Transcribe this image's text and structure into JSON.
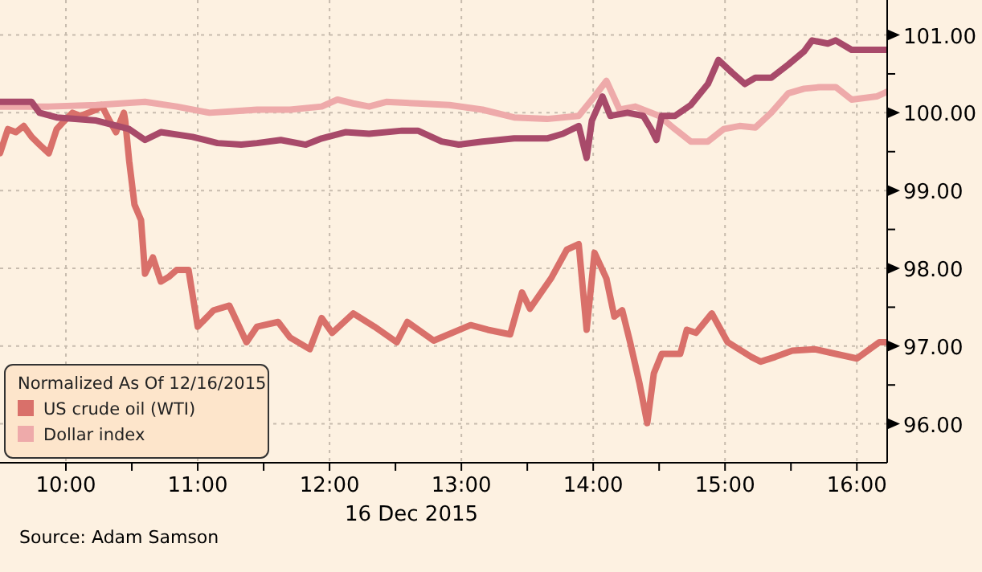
{
  "chart_data": {
    "type": "line",
    "xlabel": "16 Dec 2015",
    "legend_title": "Normalized As Of 12/16/2015",
    "legend": "bottom left",
    "grid": true,
    "line_style": "solid",
    "marker": "none",
    "xlim": [
      9.5,
      16.23
    ],
    "xticks": [
      {
        "value": 10,
        "label": "10:00"
      },
      {
        "value": 10.5,
        "label": null
      },
      {
        "value": 11,
        "label": "11:00"
      },
      {
        "value": 11.5,
        "label": null
      },
      {
        "value": 12,
        "label": "12:00"
      },
      {
        "value": 12.5,
        "label": null
      },
      {
        "value": 13,
        "label": "13:00"
      },
      {
        "value": 13.5,
        "label": null
      },
      {
        "value": 14,
        "label": "14:00"
      },
      {
        "value": 14.5,
        "label": null
      },
      {
        "value": 15,
        "label": "15:00"
      },
      {
        "value": 15.5,
        "label": null
      },
      {
        "value": 16,
        "label": "16:00"
      }
    ],
    "ylim": [
      95.5,
      101.45
    ],
    "yticks": [
      {
        "value": 96,
        "label": "96.00"
      },
      {
        "value": 96.5,
        "label": null
      },
      {
        "value": 97,
        "label": "97.00"
      },
      {
        "value": 97.5,
        "label": null
      },
      {
        "value": 98,
        "label": "98.00"
      },
      {
        "value": 98.5,
        "label": null
      },
      {
        "value": 99,
        "label": "99.00"
      },
      {
        "value": 99.5,
        "label": null
      },
      {
        "value": 100,
        "label": "100.00"
      },
      {
        "value": 100.5,
        "label": null
      },
      {
        "value": 101,
        "label": "101.00"
      }
    ],
    "annotations": [
      "Source: Adam Samson"
    ],
    "series": [
      {
        "color": "#d9706a",
        "name": "US crude oil (WTI)",
        "x": [
          9.5,
          9.56,
          9.62,
          9.68,
          9.74,
          9.8,
          9.87,
          9.93,
          9.99,
          10.05,
          10.11,
          10.17,
          10.23,
          10.27,
          10.33,
          10.38,
          10.44,
          10.45,
          10.48,
          10.52,
          10.57,
          10.6,
          10.66,
          10.72,
          10.78,
          10.84,
          10.93,
          11,
          11.12,
          11.24,
          11.37,
          11.45,
          11.61,
          11.7,
          11.85,
          11.94,
          12.02,
          12.18,
          12.34,
          12.51,
          12.59,
          12.79,
          13.07,
          13.2,
          13.37,
          13.46,
          13.52,
          13.68,
          13.8,
          13.89,
          13.95,
          14.01,
          14.1,
          14.16,
          14.22,
          14.28,
          14.35,
          14.41,
          14.46,
          14.52,
          14.66,
          14.71,
          14.78,
          14.9,
          15.02,
          15.2,
          15.27,
          15.38,
          15.51,
          15.68,
          15.84,
          16,
          16.17,
          16.23
        ],
        "values": [
          99.48,
          99.79,
          99.75,
          99.83,
          99.69,
          99.59,
          99.48,
          99.79,
          99.9,
          100,
          99.96,
          100,
          100.04,
          100.1,
          99.9,
          99.75,
          100,
          99.9,
          99.38,
          98.82,
          98.62,
          97.93,
          98.14,
          97.83,
          97.89,
          97.98,
          97.98,
          97.25,
          97.46,
          97.52,
          97.05,
          97.25,
          97.31,
          97.11,
          96.96,
          97.36,
          97.17,
          97.42,
          97.25,
          97.05,
          97.31,
          97.07,
          97.27,
          97.21,
          97.15,
          97.69,
          97.48,
          97.87,
          98.24,
          98.31,
          97.21,
          98.2,
          97.87,
          97.38,
          97.46,
          97.05,
          96.53,
          96.01,
          96.65,
          96.9,
          96.9,
          97.21,
          97.17,
          97.42,
          97.05,
          96.86,
          96.8,
          96.86,
          96.94,
          96.96,
          96.9,
          96.84,
          97.05,
          97.05
        ]
      },
      {
        "color": "#eeaaaa",
        "name": "Dollar index",
        "x": [
          9.5,
          9.87,
          10.23,
          10.6,
          10.84,
          11.09,
          11.27,
          11.45,
          11.7,
          11.94,
          12.06,
          12.18,
          12.3,
          12.43,
          12.67,
          12.91,
          13.16,
          13.4,
          13.65,
          13.89,
          14.01,
          14.1,
          14.2,
          14.32,
          14.5,
          14.62,
          14.74,
          14.87,
          14.99,
          15.11,
          15.23,
          15.35,
          15.48,
          15.6,
          15.72,
          15.84,
          15.96,
          16.15,
          16.23
        ],
        "values": [
          100.08,
          100.08,
          100.1,
          100.14,
          100.08,
          100,
          100.02,
          100.04,
          100.04,
          100.08,
          100.17,
          100.12,
          100.08,
          100.14,
          100.12,
          100.1,
          100.04,
          99.94,
          99.92,
          99.96,
          100.21,
          100.41,
          100.04,
          100.08,
          99.96,
          99.79,
          99.63,
          99.63,
          99.79,
          99.83,
          99.81,
          100,
          100.25,
          100.31,
          100.33,
          100.33,
          100.17,
          100.21,
          100.27
        ]
      },
      {
        "color": "#a84a6a",
        "x": [
          9.5,
          9.74,
          9.8,
          9.93,
          10.23,
          10.48,
          10.6,
          10.72,
          10.96,
          11.15,
          11.33,
          11.45,
          11.63,
          11.82,
          11.94,
          12.12,
          12.3,
          12.55,
          12.67,
          12.85,
          12.98,
          13.16,
          13.4,
          13.65,
          13.77,
          13.89,
          13.95,
          13.99,
          14.07,
          14.13,
          14.26,
          14.38,
          14.44,
          14.48,
          14.52,
          14.62,
          14.74,
          14.87,
          14.95,
          15.05,
          15.15,
          15.23,
          15.35,
          15.48,
          15.6,
          15.66,
          15.78,
          15.84,
          15.96,
          16.23
        ],
        "values": [
          100.14,
          100.14,
          100,
          99.94,
          99.9,
          99.79,
          99.65,
          99.75,
          99.69,
          99.61,
          99.59,
          99.61,
          99.65,
          99.59,
          99.67,
          99.75,
          99.73,
          99.77,
          99.77,
          99.63,
          99.59,
          99.63,
          99.67,
          99.67,
          99.73,
          99.83,
          99.42,
          99.9,
          100.21,
          99.96,
          100,
          99.96,
          99.79,
          99.65,
          99.96,
          99.96,
          100.1,
          100.37,
          100.68,
          100.52,
          100.37,
          100.45,
          100.45,
          100.62,
          100.79,
          100.93,
          100.89,
          100.93,
          100.81,
          100.81
        ]
      }
    ]
  }
}
